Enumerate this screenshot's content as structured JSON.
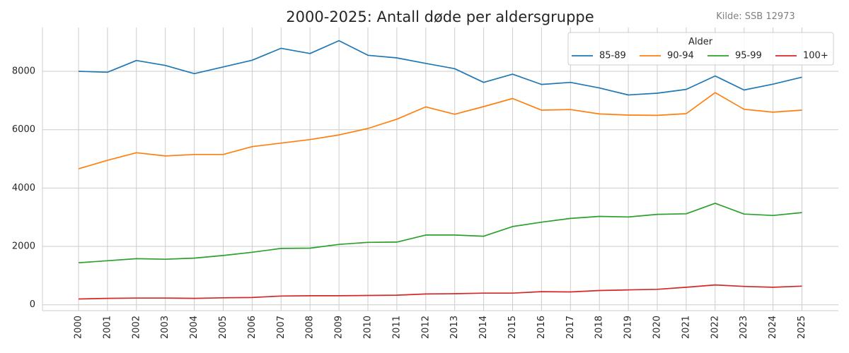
{
  "chart_data": {
    "type": "line",
    "title": "2000-2025: Antall døde per aldersgruppe",
    "source": "Kilde: SSB 12973",
    "xlabel": "",
    "ylabel": "",
    "legend_title": "Alder",
    "legend_position": "top-right",
    "grid": true,
    "ylim": [
      -200,
      9500
    ],
    "yticks": [
      0,
      2000,
      4000,
      6000,
      8000
    ],
    "x": [
      "2000",
      "2001",
      "2002",
      "2003",
      "2004",
      "2005",
      "2006",
      "2007",
      "2008",
      "2009",
      "2010",
      "2011",
      "2012",
      "2013",
      "2014",
      "2015",
      "2016",
      "2017",
      "2018",
      "2019",
      "2020",
      "2021",
      "2022",
      "2023",
      "2024",
      "2025"
    ],
    "series": [
      {
        "name": "85-89",
        "color": "#1f77b4",
        "values": [
          8000,
          7970,
          8370,
          8200,
          7920,
          8150,
          8380,
          8790,
          8610,
          9050,
          8550,
          8460,
          8270,
          8090,
          7620,
          7900,
          7550,
          7620,
          7430,
          7190,
          7250,
          7380,
          7840,
          7360,
          7560,
          7800
        ]
      },
      {
        "name": "90-94",
        "color": "#ff7f0e",
        "values": [
          4660,
          4950,
          5210,
          5100,
          5150,
          5150,
          5420,
          5540,
          5660,
          5820,
          6040,
          6360,
          6780,
          6530,
          6790,
          7070,
          6670,
          6690,
          6540,
          6500,
          6490,
          6550,
          7270,
          6700,
          6600,
          6670
        ]
      },
      {
        "name": "95-99",
        "color": "#2ca02c",
        "values": [
          1440,
          1510,
          1580,
          1560,
          1600,
          1690,
          1800,
          1930,
          1940,
          2070,
          2140,
          2150,
          2390,
          2390,
          2350,
          2680,
          2830,
          2960,
          3030,
          3010,
          3100,
          3120,
          3480,
          3110,
          3060,
          3160
        ]
      },
      {
        "name": "100+",
        "color": "#d62728",
        "values": [
          200,
          220,
          230,
          230,
          220,
          240,
          250,
          300,
          310,
          310,
          320,
          330,
          370,
          380,
          400,
          400,
          450,
          440,
          490,
          510,
          530,
          600,
          680,
          630,
          600,
          640
        ]
      }
    ]
  }
}
